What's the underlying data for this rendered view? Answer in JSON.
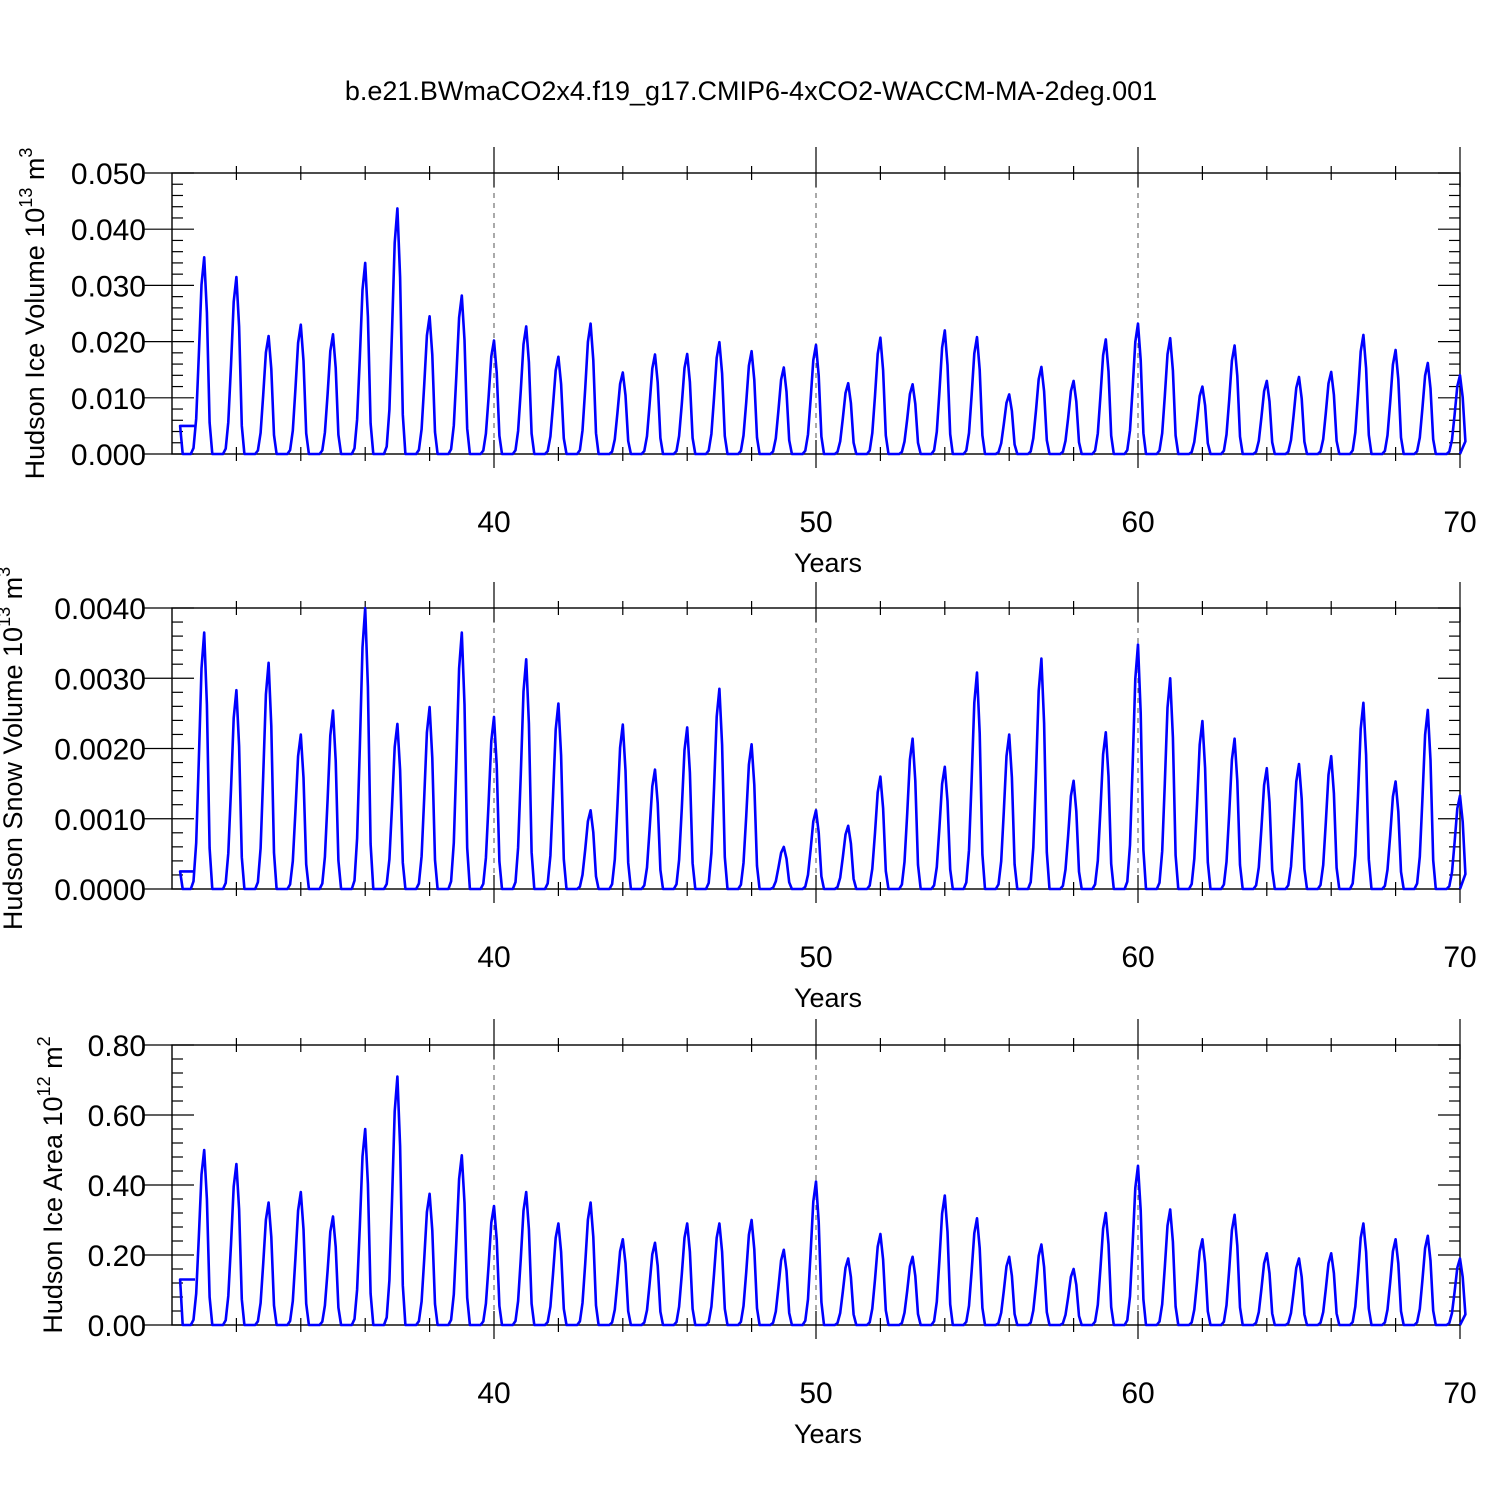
{
  "figure": {
    "title": "b.e21.BWmaCO2x4.f19_g17.CMIP6-4xCO2-WACCM-MA-2deg.001"
  },
  "chart_data": [
    {
      "type": "line",
      "title": "",
      "xlabel": "Years",
      "ylabel_main": "Hudson Ice Volume 10",
      "ylabel_exp": "13",
      "ylabel_unit": "m",
      "ylabel_unit_exp": "3",
      "xlim": [
        30,
        70
      ],
      "ylim": [
        0,
        0.05
      ],
      "x_ticks": [
        40,
        50,
        60,
        70
      ],
      "x_tick_labels": [
        "40",
        "50",
        "60",
        "70"
      ],
      "y_ticks": [
        0,
        0.01,
        0.02,
        0.03,
        0.04,
        0.05
      ],
      "y_tick_labels": [
        "0.000",
        "0.010",
        "0.020",
        "0.030",
        "0.040",
        "0.050"
      ],
      "grid_x": [
        40,
        50,
        60
      ],
      "series_color": "#0000ff",
      "start_value": 0.005,
      "peaks": [
        0.035,
        0.0315,
        0.021,
        0.023,
        0.0213,
        0.034,
        0.0437,
        0.0245,
        0.0282,
        0.0202,
        0.0227,
        0.0173,
        0.0232,
        0.0145,
        0.0177,
        0.0178,
        0.0199,
        0.0183,
        0.0154,
        0.0194,
        0.0126,
        0.0207,
        0.0124,
        0.022,
        0.0208,
        0.0106,
        0.0155,
        0.013,
        0.0204,
        0.0232,
        0.0206,
        0.012,
        0.0193,
        0.013,
        0.0137,
        0.0146,
        0.0212,
        0.0185,
        0.0162,
        0.014
      ]
    },
    {
      "type": "line",
      "title": "",
      "xlabel": "Years",
      "ylabel_main": "Hudson Snow Volume 10",
      "ylabel_exp": "13",
      "ylabel_unit": "m",
      "ylabel_unit_exp": "3",
      "xlim": [
        30,
        70
      ],
      "ylim": [
        0,
        0.004
      ],
      "x_ticks": [
        40,
        50,
        60,
        70
      ],
      "x_tick_labels": [
        "40",
        "50",
        "60",
        "70"
      ],
      "y_ticks": [
        0,
        0.001,
        0.002,
        0.003,
        0.004
      ],
      "y_tick_labels": [
        "0.0000",
        "0.0010",
        "0.0020",
        "0.0030",
        "0.0040"
      ],
      "grid_x": [
        40,
        50,
        60
      ],
      "series_color": "#0000ff",
      "start_value": 0.00025,
      "peaks": [
        0.00365,
        0.00283,
        0.00322,
        0.0022,
        0.00254,
        0.004,
        0.00235,
        0.00259,
        0.00365,
        0.00245,
        0.00327,
        0.00264,
        0.00112,
        0.00234,
        0.0017,
        0.0023,
        0.00285,
        0.00206,
        0.0006,
        0.00112,
        0.0009,
        0.0016,
        0.00214,
        0.00174,
        0.00308,
        0.0022,
        0.00328,
        0.00154,
        0.00223,
        0.00348,
        0.003,
        0.00239,
        0.00214,
        0.00172,
        0.00178,
        0.00189,
        0.00265,
        0.00153,
        0.00255,
        0.00133
      ]
    },
    {
      "type": "line",
      "title": "",
      "xlabel": "Years",
      "ylabel_main": "Hudson Ice Area 10",
      "ylabel_exp": "12",
      "ylabel_unit": "m",
      "ylabel_unit_exp": "2",
      "xlim": [
        30,
        70
      ],
      "ylim": [
        0,
        0.8
      ],
      "x_ticks": [
        40,
        50,
        60,
        70
      ],
      "x_tick_labels": [
        "40",
        "50",
        "60",
        "70"
      ],
      "y_ticks": [
        0,
        0.2,
        0.4,
        0.6,
        0.8
      ],
      "y_tick_labels": [
        "0.00",
        "0.20",
        "0.40",
        "0.60",
        "0.80"
      ],
      "grid_x": [
        40,
        50,
        60
      ],
      "series_color": "#0000ff",
      "start_value": 0.13,
      "peaks": [
        0.5,
        0.46,
        0.35,
        0.38,
        0.31,
        0.56,
        0.71,
        0.375,
        0.485,
        0.34,
        0.38,
        0.29,
        0.35,
        0.245,
        0.235,
        0.29,
        0.29,
        0.3,
        0.215,
        0.41,
        0.19,
        0.26,
        0.195,
        0.37,
        0.305,
        0.195,
        0.23,
        0.16,
        0.32,
        0.455,
        0.33,
        0.245,
        0.315,
        0.205,
        0.19,
        0.205,
        0.29,
        0.245,
        0.255,
        0.19
      ]
    }
  ]
}
